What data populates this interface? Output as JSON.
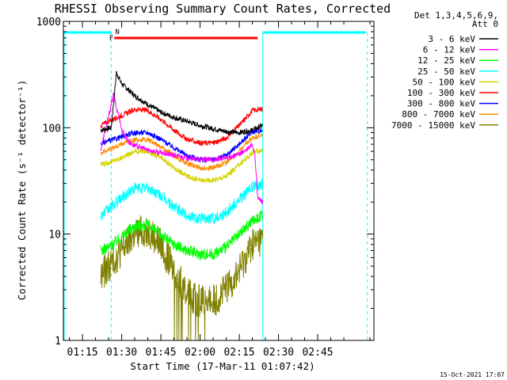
{
  "chart_data": {
    "type": "line",
    "title": "RHESSI Observing Summary Count Rates, Corrected",
    "xlabel": "Start Time (17-Mar-11 01:07:42)",
    "ylabel": "Corrected Count Rate (s⁻¹ detector⁻¹)",
    "yscale": "log",
    "ylim": [
      1,
      1000
    ],
    "xlim_min": [
      7.7,
      126.5
    ],
    "x_ticks": [
      {
        "min": 15,
        "label": "01:15"
      },
      {
        "min": 30,
        "label": "01:30"
      },
      {
        "min": 45,
        "label": "01:45"
      },
      {
        "min": 60,
        "label": "02:00"
      },
      {
        "min": 75,
        "label": "02:15"
      },
      {
        "min": 90,
        "label": "02:30"
      },
      {
        "min": 105,
        "label": "02:45"
      }
    ],
    "y_ticks": [
      {
        "value": 1,
        "label": "1"
      },
      {
        "value": 10,
        "label": "10"
      },
      {
        "value": 100,
        "label": "100"
      },
      {
        "value": 1000,
        "label": "1000"
      }
    ],
    "legend_header": [
      "Det 1,3,4,5,6,9,",
      "Att 0"
    ],
    "series": [
      {
        "name": "3 - 6 keV",
        "color": "#000000",
        "x": [
          22,
          26,
          28,
          30,
          35,
          40,
          45,
          50,
          55,
          60,
          65,
          70,
          75,
          80,
          82,
          84
        ],
        "y": [
          95,
          100,
          330,
          260,
          200,
          165,
          140,
          125,
          115,
          105,
          98,
          92,
          90,
          95,
          100,
          105
        ]
      },
      {
        "name": "6 - 12 keV",
        "color": "#ff00ff",
        "x": [
          22,
          27,
          28,
          29,
          30,
          33,
          35,
          40,
          45,
          50,
          55,
          60,
          65,
          70,
          74,
          78,
          80,
          81,
          82,
          84
        ],
        "y": [
          62,
          210,
          150,
          130,
          95,
          72,
          68,
          62,
          58,
          55,
          52,
          50,
          50,
          52,
          55,
          62,
          70,
          55,
          22,
          20
        ]
      },
      {
        "name": "12 - 25 keV",
        "color": "#00ff00",
        "x": [
          22,
          25,
          30,
          35,
          40,
          45,
          50,
          55,
          60,
          65,
          70,
          75,
          80,
          84
        ],
        "y": [
          7,
          7.5,
          9.5,
          12,
          12,
          10,
          8,
          7,
          6.5,
          6.5,
          7.5,
          10,
          13.5,
          15
        ]
      },
      {
        "name": "25 - 50 keV",
        "color": "#00ffff",
        "x": [
          22,
          25,
          30,
          35,
          40,
          45,
          50,
          55,
          60,
          65,
          70,
          75,
          80,
          84
        ],
        "y": [
          15,
          17,
          22,
          27,
          27,
          23,
          18,
          15,
          14,
          14,
          16,
          21,
          28,
          30
        ]
      },
      {
        "name": "50 - 100 keV",
        "color": "#d4d400",
        "x": [
          22,
          25,
          30,
          35,
          40,
          45,
          50,
          55,
          60,
          65,
          70,
          75,
          80,
          84
        ],
        "y": [
          45,
          47,
          52,
          60,
          60,
          52,
          42,
          35,
          32,
          32,
          35,
          45,
          58,
          62
        ]
      },
      {
        "name": "100 - 300 keV",
        "color": "#ff0000",
        "x": [
          22,
          25,
          30,
          35,
          40,
          45,
          50,
          55,
          60,
          65,
          70,
          75,
          80,
          84
        ],
        "y": [
          105,
          115,
          130,
          148,
          145,
          120,
          95,
          78,
          72,
          72,
          80,
          105,
          145,
          150
        ]
      },
      {
        "name": "300 - 800 keV",
        "color": "#0000ff",
        "x": [
          22,
          25,
          30,
          35,
          40,
          45,
          50,
          55,
          60,
          65,
          70,
          75,
          80,
          84
        ],
        "y": [
          70,
          75,
          82,
          90,
          90,
          78,
          65,
          55,
          50,
          50,
          55,
          70,
          92,
          95
        ]
      },
      {
        "name": "800 - 7000 keV",
        "color": "#ff8c00",
        "x": [
          22,
          25,
          30,
          35,
          40,
          45,
          50,
          55,
          60,
          65,
          70,
          75,
          80,
          84
        ],
        "y": [
          58,
          62,
          70,
          77,
          77,
          67,
          55,
          46,
          42,
          42,
          47,
          60,
          80,
          85
        ]
      },
      {
        "name": "7000 - 15000 keV",
        "color": "#808000",
        "x": [
          22,
          25,
          30,
          35,
          40,
          45,
          50,
          55,
          60,
          65,
          70,
          75,
          80,
          84
        ],
        "y": [
          4,
          5,
          7,
          10,
          11,
          8,
          4.5,
          2.8,
          2.3,
          2.3,
          3,
          4.5,
          8,
          9
        ]
      }
    ],
    "flag_markers": [
      {
        "label": "N",
        "color": "#00ffff"
      },
      {
        "label": "F",
        "color": "#ff0000"
      }
    ]
  },
  "timestamp": "15-Oct-2021 17:07"
}
